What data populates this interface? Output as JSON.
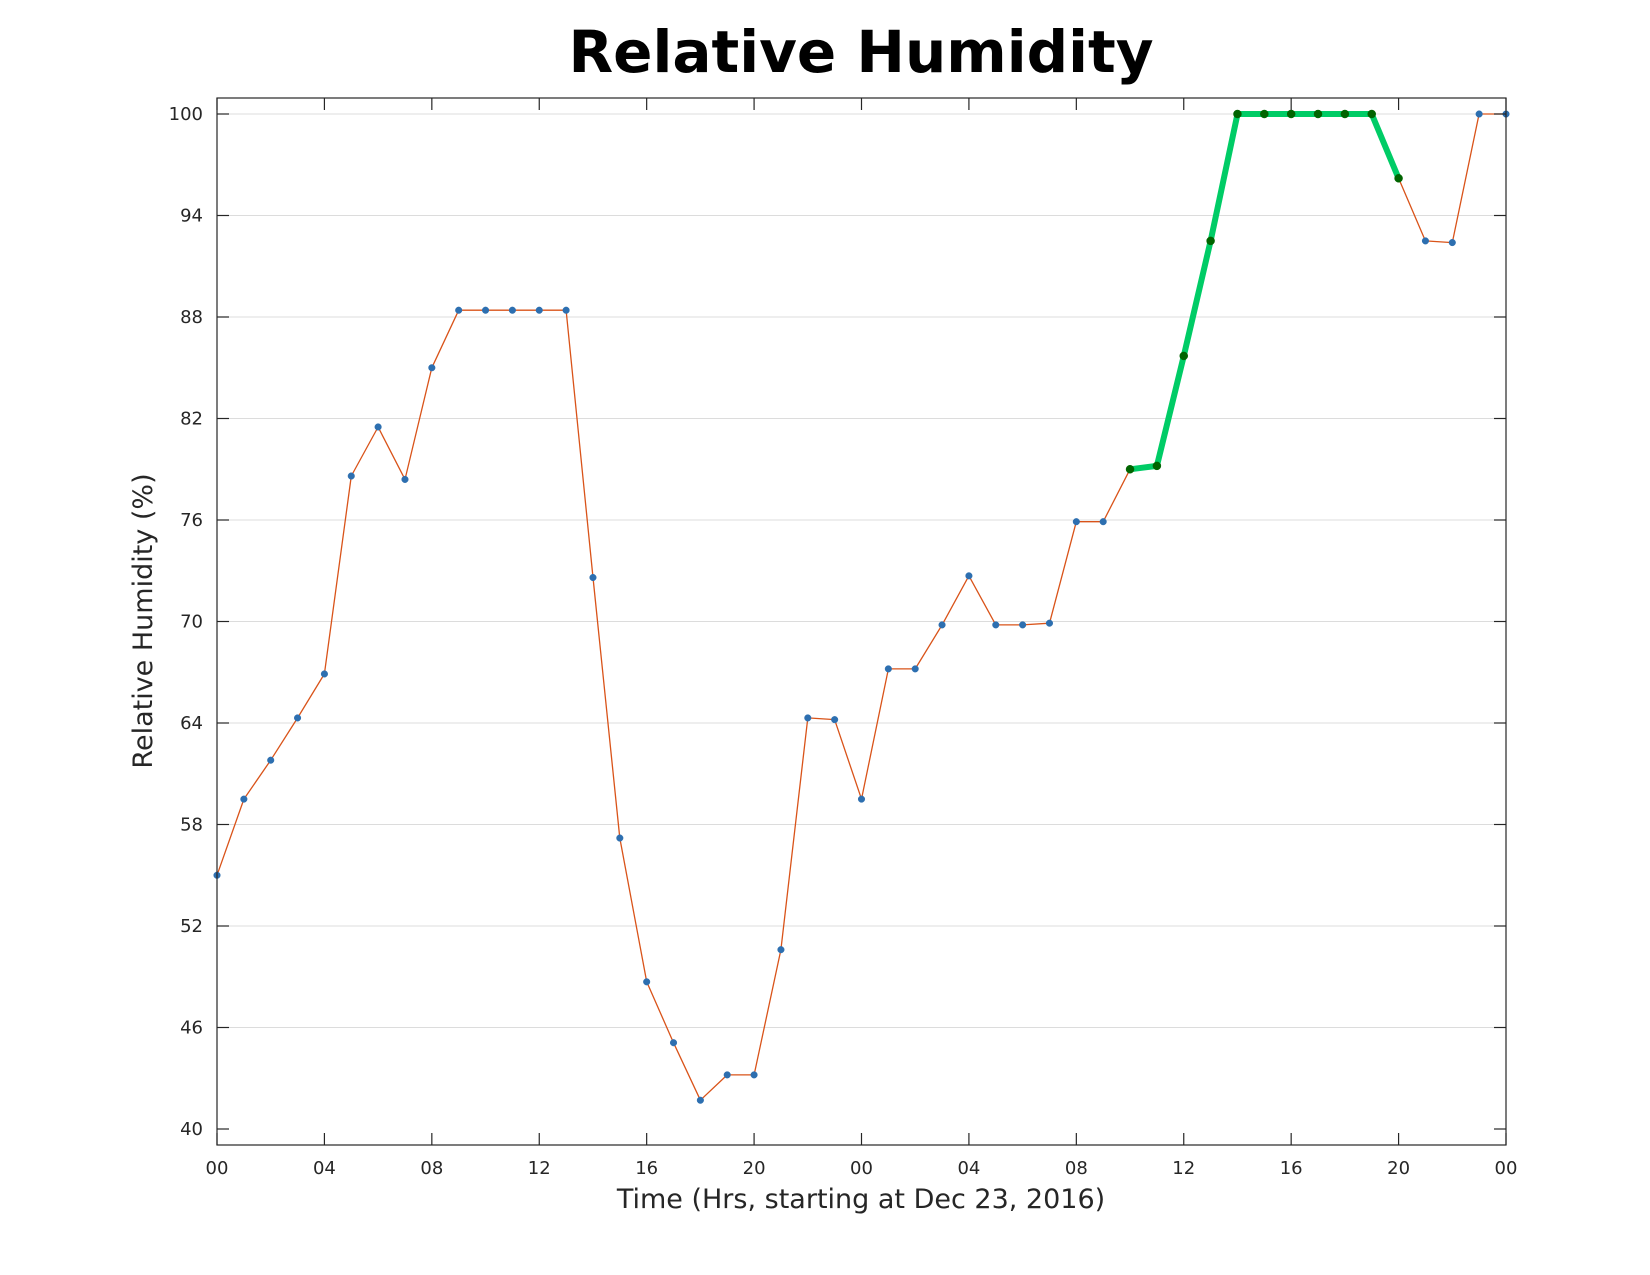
{
  "chart_data": {
    "type": "line",
    "title": "Relative Humidity",
    "xlabel": "Time (Hrs, starting at Dec 23, 2016)",
    "ylabel": "Relative Humidity (%)",
    "ylim": [
      40,
      100
    ],
    "xlim": [
      0,
      48
    ],
    "x_tick_labels": [
      "00",
      "04",
      "08",
      "12",
      "16",
      "20",
      "00",
      "04",
      "08",
      "12",
      "16",
      "20",
      "00"
    ],
    "y_ticks": [
      40,
      46,
      52,
      58,
      64,
      70,
      76,
      82,
      88,
      94,
      100
    ],
    "grid": "horizontal",
    "x_unit": "hours",
    "series": [
      {
        "color": "#d95319",
        "marker_color": "#2d6fb0",
        "x": [
          0,
          1,
          2,
          3,
          4,
          5,
          6,
          7,
          8,
          9,
          10,
          11,
          12,
          13,
          14,
          15,
          16,
          17,
          18,
          19,
          20,
          21,
          22,
          23,
          24,
          25,
          26,
          27,
          28,
          29,
          30,
          31,
          32,
          33,
          34,
          35,
          36,
          37,
          38,
          39,
          40,
          41,
          42,
          43,
          44,
          45,
          46,
          47,
          48
        ],
        "values": [
          55.0,
          59.5,
          61.8,
          64.3,
          66.9,
          78.6,
          81.5,
          78.4,
          85.0,
          88.4,
          88.4,
          88.4,
          88.4,
          88.4,
          72.6,
          57.2,
          48.7,
          45.1,
          41.7,
          43.2,
          43.2,
          50.6,
          64.3,
          64.2,
          59.5,
          67.2,
          67.2,
          69.8,
          72.7,
          69.8,
          69.8,
          69.9,
          75.9,
          75.9,
          79.0,
          79.2,
          85.7,
          92.5,
          100.0,
          100.0,
          100.0,
          100.0,
          100.0,
          100.0,
          96.2,
          92.5,
          92.4,
          100.0,
          100.0
        ]
      },
      {
        "color": "#00cc66",
        "marker_color": "#006400",
        "x": [
          34,
          35,
          36,
          37,
          38,
          39,
          40,
          41,
          42,
          43,
          44
        ],
        "values": [
          79.0,
          79.2,
          85.7,
          92.5,
          100.0,
          100.0,
          100.0,
          100.0,
          100.0,
          100.0,
          96.2
        ]
      }
    ]
  }
}
